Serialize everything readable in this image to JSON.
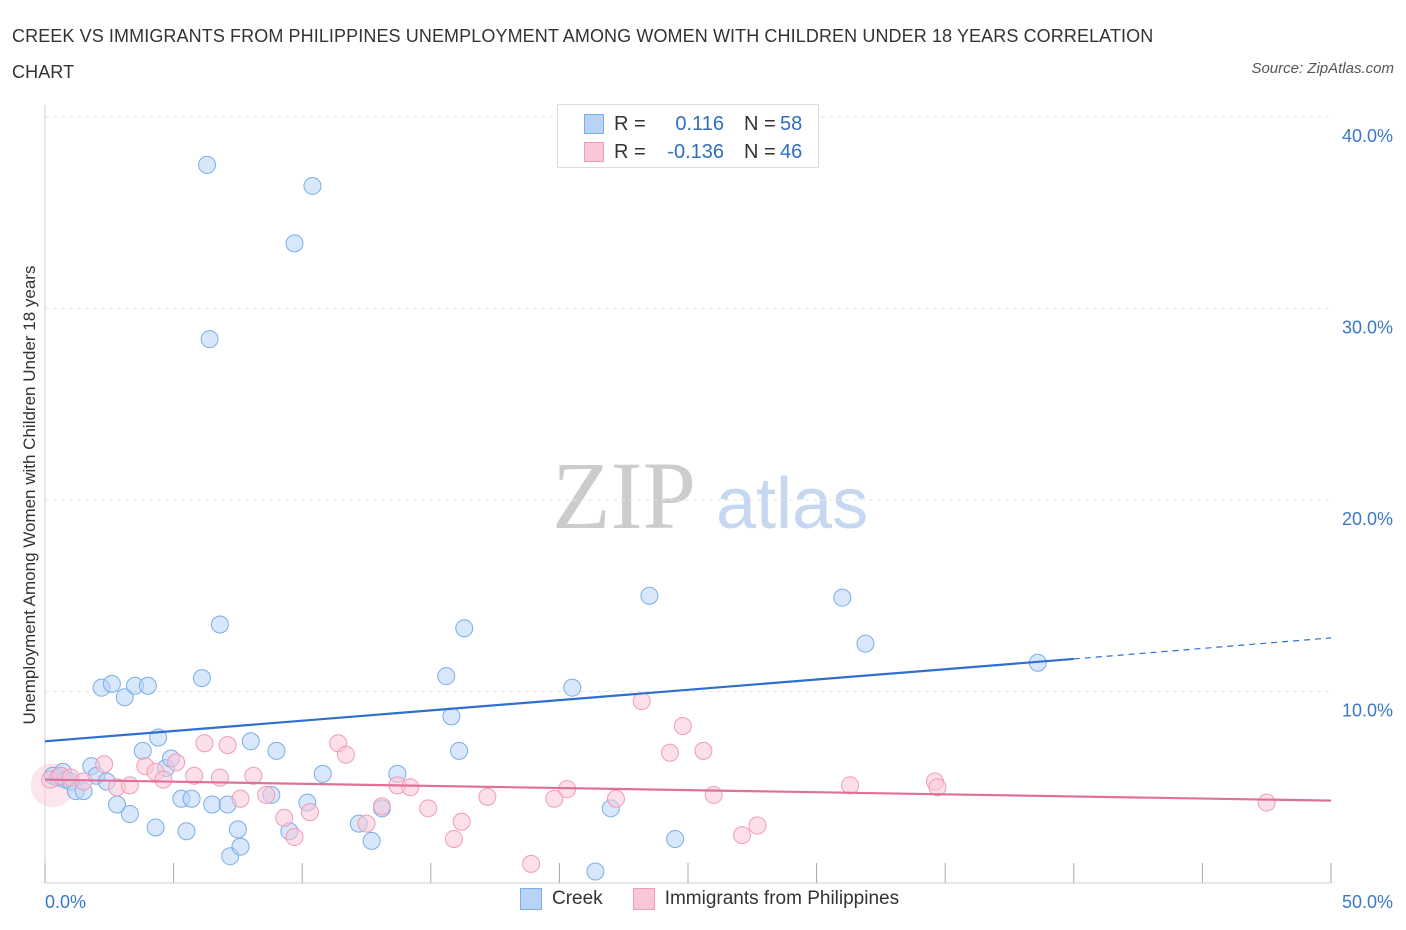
{
  "title": "CREEK VS IMMIGRANTS FROM PHILIPPINES UNEMPLOYMENT AMONG WOMEN WITH CHILDREN UNDER 18 YEARS CORRELATION CHART",
  "source": "Source: ZipAtlas.com",
  "watermark": {
    "zip": "ZIP",
    "atlas": "atlas"
  },
  "legend": {
    "r_label": "R =",
    "n_label": "N =",
    "rows": [
      {
        "r": "0.116",
        "n": "58"
      },
      {
        "r": "-0.136",
        "n": "46"
      }
    ]
  },
  "bottom_legend": [
    "Creek",
    "Immigrants from Philippines"
  ],
  "chart_data": {
    "type": "scatter",
    "title": "CREEK VS IMMIGRANTS FROM PHILIPPINES UNEMPLOYMENT AMONG WOMEN WITH CHILDREN UNDER 18 YEARS CORRELATION CHART",
    "xlabel": "",
    "ylabel": "Unemployment Among Women with Children Under 18 years",
    "xlim": [
      0,
      50
    ],
    "ylim": [
      0,
      40
    ],
    "x_tick_labels": [
      "0.0%",
      "50.0%"
    ],
    "y_tick_values": [
      10,
      20,
      30,
      40
    ],
    "y_tick_labels": [
      "10.0%",
      "20.0%",
      "30.0%",
      "40.0%"
    ],
    "grid": true,
    "legend_position": "top-center",
    "series": [
      {
        "name": "Creek",
        "color": "#7aaee8",
        "trend": {
          "x0": 0,
          "y0": 7.4,
          "x1": 40,
          "y1": 11.7,
          "dashed_to_x": 50,
          "dashed_to_y": 12.8,
          "color": "#2e6fd0"
        },
        "points": [
          [
            0.3,
            5.6
          ],
          [
            0.5,
            5.5
          ],
          [
            0.7,
            5.8
          ],
          [
            0.8,
            5.4
          ],
          [
            1.0,
            5.3
          ],
          [
            1.2,
            4.8
          ],
          [
            1.5,
            4.8
          ],
          [
            1.8,
            6.1
          ],
          [
            2.0,
            5.6
          ],
          [
            2.2,
            10.2
          ],
          [
            2.4,
            5.3
          ],
          [
            2.6,
            10.4
          ],
          [
            2.8,
            4.1
          ],
          [
            3.1,
            9.7
          ],
          [
            3.3,
            3.6
          ],
          [
            3.5,
            10.3
          ],
          [
            3.8,
            6.9
          ],
          [
            4.0,
            10.3
          ],
          [
            4.3,
            2.9
          ],
          [
            4.4,
            7.6
          ],
          [
            4.7,
            6.0
          ],
          [
            4.9,
            6.5
          ],
          [
            5.3,
            4.4
          ],
          [
            5.5,
            2.7
          ],
          [
            5.7,
            4.4
          ],
          [
            6.1,
            10.7
          ],
          [
            6.3,
            37.5
          ],
          [
            6.4,
            28.4
          ],
          [
            6.5,
            4.1
          ],
          [
            6.8,
            13.5
          ],
          [
            7.1,
            4.1
          ],
          [
            7.2,
            1.4
          ],
          [
            7.5,
            2.8
          ],
          [
            7.6,
            1.9
          ],
          [
            8.0,
            7.4
          ],
          [
            8.8,
            4.6
          ],
          [
            9.0,
            6.9
          ],
          [
            9.5,
            2.7
          ],
          [
            9.7,
            33.4
          ],
          [
            10.2,
            4.2
          ],
          [
            10.4,
            36.4
          ],
          [
            10.8,
            5.7
          ],
          [
            12.2,
            3.1
          ],
          [
            12.7,
            2.2
          ],
          [
            13.1,
            3.9
          ],
          [
            13.7,
            5.7
          ],
          [
            15.6,
            10.8
          ],
          [
            15.8,
            8.7
          ],
          [
            16.1,
            6.9
          ],
          [
            16.3,
            13.3
          ],
          [
            20.5,
            10.2
          ],
          [
            21.4,
            0.6
          ],
          [
            22.0,
            3.9
          ],
          [
            23.5,
            15.0
          ],
          [
            24.5,
            2.3
          ],
          [
            31.0,
            14.9
          ],
          [
            31.9,
            12.5
          ],
          [
            38.6,
            11.5
          ]
        ]
      },
      {
        "name": "Immigrants from Philippines",
        "color": "#f29bb8",
        "trend": {
          "x0": 0,
          "y0": 5.4,
          "x1": 50,
          "y1": 4.3,
          "color": "#e0709a"
        },
        "points": [
          [
            0.2,
            5.4
          ],
          [
            0.6,
            5.6
          ],
          [
            1.0,
            5.5
          ],
          [
            1.5,
            5.3
          ],
          [
            2.3,
            6.2
          ],
          [
            2.8,
            5.0
          ],
          [
            3.3,
            5.1
          ],
          [
            3.9,
            6.1
          ],
          [
            4.3,
            5.8
          ],
          [
            4.6,
            5.4
          ],
          [
            5.1,
            6.3
          ],
          [
            5.8,
            5.6
          ],
          [
            6.2,
            7.3
          ],
          [
            6.8,
            5.5
          ],
          [
            7.1,
            7.2
          ],
          [
            7.6,
            4.4
          ],
          [
            8.1,
            5.6
          ],
          [
            8.6,
            4.6
          ],
          [
            9.3,
            3.4
          ],
          [
            9.7,
            2.4
          ],
          [
            10.3,
            3.7
          ],
          [
            11.4,
            7.3
          ],
          [
            11.7,
            6.7
          ],
          [
            12.5,
            3.1
          ],
          [
            13.1,
            4.0
          ],
          [
            13.7,
            5.1
          ],
          [
            14.2,
            5.0
          ],
          [
            14.9,
            3.9
          ],
          [
            15.9,
            2.3
          ],
          [
            16.2,
            3.2
          ],
          [
            17.2,
            4.5
          ],
          [
            18.9,
            1.0
          ],
          [
            19.8,
            4.4
          ],
          [
            20.3,
            4.9
          ],
          [
            22.2,
            4.4
          ],
          [
            23.2,
            9.5
          ],
          [
            24.3,
            6.8
          ],
          [
            24.8,
            8.2
          ],
          [
            25.6,
            6.9
          ],
          [
            26.0,
            4.6
          ],
          [
            27.1,
            2.5
          ],
          [
            27.7,
            3.0
          ],
          [
            31.3,
            5.1
          ],
          [
            34.6,
            5.3
          ],
          [
            34.7,
            5.0
          ],
          [
            47.5,
            4.2
          ]
        ]
      }
    ]
  }
}
